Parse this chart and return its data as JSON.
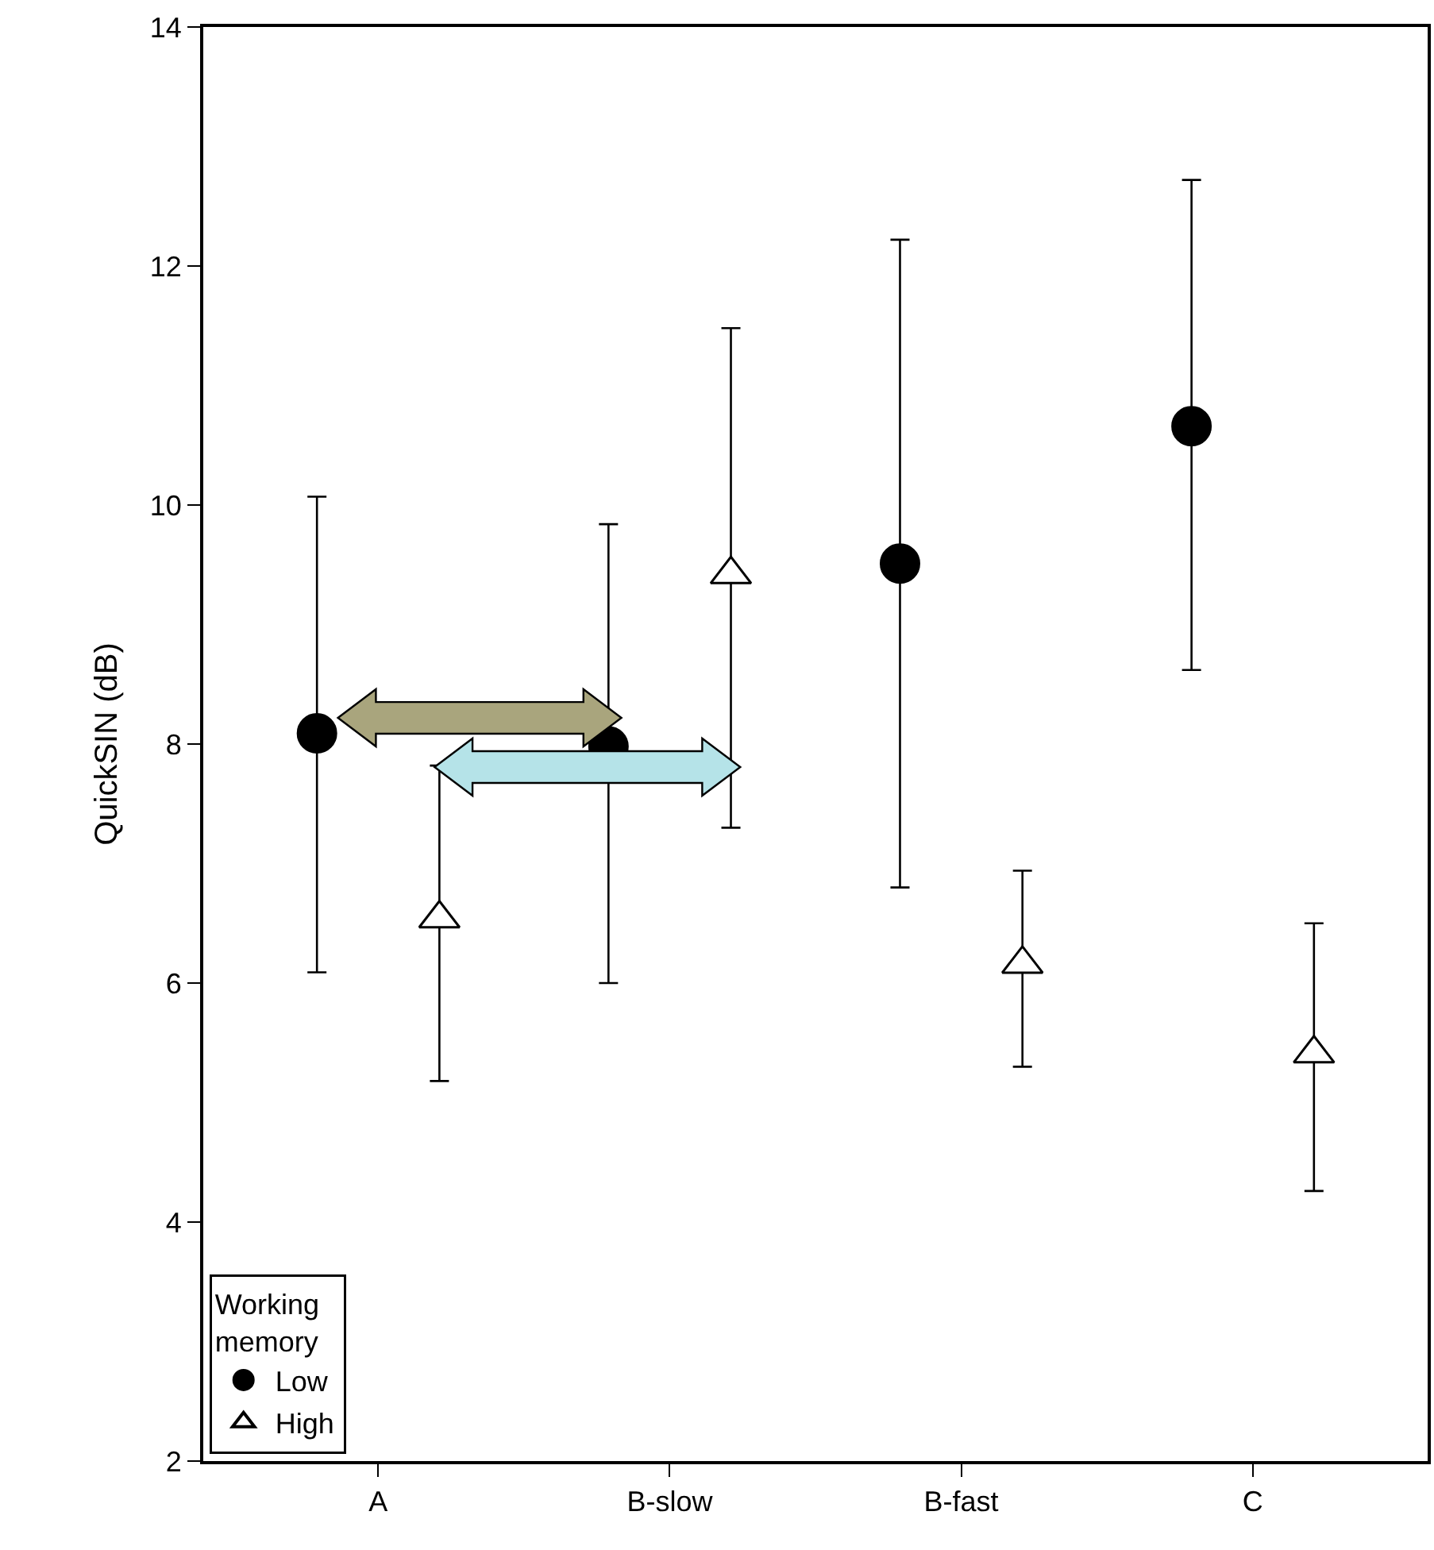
{
  "chart_data": {
    "type": "scatter",
    "ylabel": "QuickSIN (dB)",
    "legend_title": "Working memory",
    "categories": [
      "A",
      "B-slow",
      "B-fast",
      "C"
    ],
    "series": [
      {
        "name": "Low",
        "color": "#000000",
        "marker": "circle",
        "values": [
          8.09,
          7.98,
          9.51,
          10.66
        ],
        "errors": [
          [
            6.09,
            10.07
          ],
          [
            6.0,
            9.84
          ],
          [
            6.8,
            12.22
          ],
          [
            8.62,
            12.72
          ]
        ]
      },
      {
        "name": "High",
        "color": "#ffffff",
        "marker": "triangle",
        "values": [
          6.54,
          9.42,
          6.16,
          5.41
        ],
        "errors": [
          [
            5.18,
            7.82
          ],
          [
            7.3,
            11.48
          ],
          [
            5.3,
            6.94
          ],
          [
            4.26,
            6.5
          ]
        ]
      }
    ],
    "ylim": [
      2,
      14
    ],
    "yticks": [
      2,
      4,
      6,
      8,
      10,
      12,
      14
    ],
    "legend": "bottom left"
  }
}
